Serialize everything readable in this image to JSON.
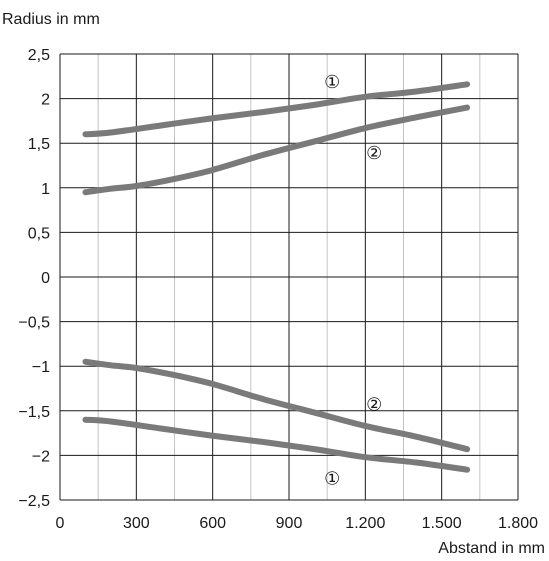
{
  "chart_data": {
    "type": "line",
    "xlabel": "Abstand in mm",
    "ylabel": "Radius in mm",
    "xlim": [
      0,
      1800
    ],
    "ylim": [
      -2.5,
      2.5
    ],
    "grid": true,
    "x_ticks": [
      {
        "value": 0,
        "label": "0"
      },
      {
        "value": 300,
        "label": "300"
      },
      {
        "value": 600,
        "label": "600"
      },
      {
        "value": 900,
        "label": "900"
      },
      {
        "value": 1200,
        "label": "1.200"
      },
      {
        "value": 1500,
        "label": "1.500"
      },
      {
        "value": 1800,
        "label": "1.800"
      }
    ],
    "x_minor_gridlines": [
      150,
      450,
      750,
      1050,
      1350,
      1650
    ],
    "y_ticks": [
      {
        "value": 2.5,
        "label": "2,5"
      },
      {
        "value": 2,
        "label": "2"
      },
      {
        "value": 1.5,
        "label": "1,5"
      },
      {
        "value": 1,
        "label": "1"
      },
      {
        "value": 0.5,
        "label": "0,5"
      },
      {
        "value": 0,
        "label": "0"
      },
      {
        "value": -0.5,
        "label": "−0,5"
      },
      {
        "value": -1,
        "label": "−1"
      },
      {
        "value": -1.5,
        "label": "−1,5"
      },
      {
        "value": -2,
        "label": "−2"
      },
      {
        "value": -2.5,
        "label": "−2,5"
      }
    ],
    "line_color": "#7a7a7a",
    "series": [
      {
        "marker": "①",
        "x": [
          100,
          200,
          400,
          600,
          800,
          1000,
          1200,
          1400,
          1600
        ],
        "y": [
          1.6,
          1.62,
          1.7,
          1.78,
          1.85,
          1.93,
          2.02,
          2.08,
          2.16
        ]
      },
      {
        "marker": "②",
        "x": [
          100,
          200,
          300,
          450,
          600,
          800,
          1000,
          1200,
          1400,
          1600
        ],
        "y": [
          0.95,
          0.99,
          1.02,
          1.1,
          1.2,
          1.37,
          1.52,
          1.67,
          1.79,
          1.9
        ]
      },
      {
        "marker": "①",
        "x": [
          100,
          200,
          400,
          600,
          800,
          1000,
          1200,
          1400,
          1600
        ],
        "y": [
          -1.6,
          -1.62,
          -1.7,
          -1.78,
          -1.85,
          -1.93,
          -2.02,
          -2.08,
          -2.16
        ]
      },
      {
        "marker": "②",
        "x": [
          100,
          200,
          300,
          450,
          600,
          800,
          1000,
          1200,
          1400,
          1600
        ],
        "y": [
          -0.95,
          -0.99,
          -1.02,
          -1.1,
          -1.2,
          -1.37,
          -1.52,
          -1.67,
          -1.79,
          -1.93
        ]
      }
    ],
    "annotations": [
      {
        "text": "①",
        "x": 1070,
        "y": 2.2
      },
      {
        "text": "②",
        "x": 1235,
        "y": 1.4
      },
      {
        "text": "②",
        "x": 1235,
        "y": -1.42
      },
      {
        "text": "①",
        "x": 1070,
        "y": -2.25
      }
    ]
  }
}
